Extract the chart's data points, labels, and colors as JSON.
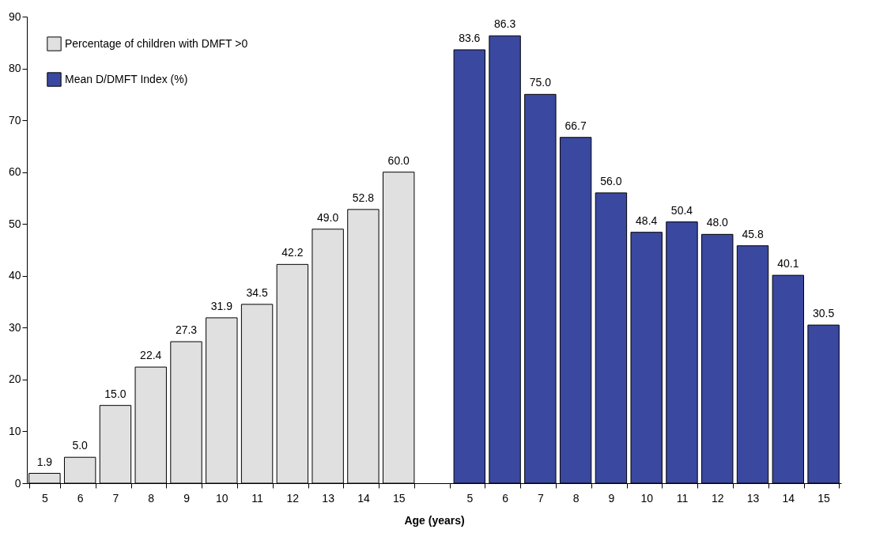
{
  "chart_data": {
    "type": "bar",
    "xlabel": "Age (years)",
    "categories": [
      "5",
      "6",
      "7",
      "8",
      "9",
      "10",
      "11",
      "12",
      "13",
      "14",
      "15",
      null,
      "5",
      "6",
      "7",
      "8",
      "9",
      "10",
      "11",
      "12",
      "13",
      "14",
      "15"
    ],
    "series": [
      {
        "name": "Percentage of children with DMFT >0",
        "color": "#e0e0e0",
        "values": [
          1.9,
          5.0,
          15.0,
          22.4,
          27.3,
          31.9,
          34.5,
          42.2,
          49.0,
          52.8,
          60.0,
          null,
          null,
          null,
          null,
          null,
          null,
          null,
          null,
          null,
          null,
          null,
          null
        ],
        "value_labels": [
          "1.9",
          "5.0",
          "15.0",
          "22.4",
          "27.3",
          "31.9",
          "34.5",
          "42.2",
          "49.0",
          "52.8",
          "60.0",
          null,
          null,
          null,
          null,
          null,
          null,
          null,
          null,
          null,
          null,
          null,
          null
        ]
      },
      {
        "name": "Mean D/DMFT Index (%)",
        "color": "#3a48a0",
        "values": [
          null,
          null,
          null,
          null,
          null,
          null,
          null,
          null,
          null,
          null,
          null,
          null,
          83.6,
          86.3,
          75.0,
          66.7,
          56.0,
          48.4,
          50.4,
          48.0,
          45.8,
          40.1,
          30.5
        ],
        "value_labels": [
          null,
          null,
          null,
          null,
          null,
          null,
          null,
          null,
          null,
          null,
          null,
          null,
          "83.6",
          "86.3",
          "75.0",
          "66.7",
          "56.0",
          "48.4",
          "50.4",
          "48.0",
          "45.8",
          "40.1",
          "30.5"
        ]
      }
    ],
    "ylim": [
      0,
      90
    ],
    "yticks": [
      0,
      10,
      20,
      30,
      40,
      50,
      60,
      70,
      80,
      90
    ],
    "grid": false,
    "legend": "top left"
  }
}
